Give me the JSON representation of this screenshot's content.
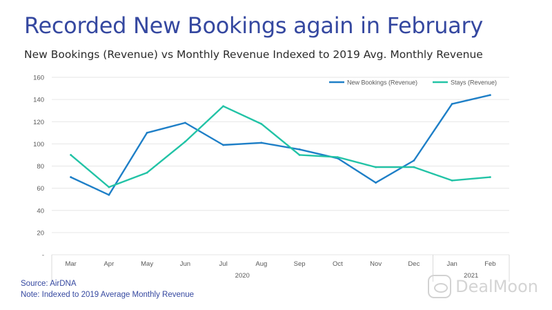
{
  "page": {
    "title": "Recorded New Bookings again in February",
    "subtitle": "New Bookings (Revenue) vs Monthly Revenue Indexed to 2019 Avg. Monthly Revenue"
  },
  "notes": {
    "source": "Source: AirDNA",
    "note": "Note: Indexed to 2019 Average Monthly Revenue"
  },
  "watermark": {
    "text": "DealMoon",
    "icon": "dealmoon-logo-icon"
  },
  "colors": {
    "title": "#3548a0",
    "new_bookings": "#1e7fc7",
    "stays": "#22c3a6",
    "grid": "#e6e6e6"
  },
  "chart_data": {
    "type": "line",
    "title": "",
    "xlabel": "",
    "ylabel": "",
    "categories": [
      "Mar",
      "Apr",
      "May",
      "Jun",
      "Jul",
      "Aug",
      "Sep",
      "Oct",
      "Nov",
      "Dec",
      "Jan",
      "Feb"
    ],
    "year_groups": [
      {
        "label": "2020",
        "categories": [
          "Mar",
          "Apr",
          "May",
          "Jun",
          "Jul",
          "Aug",
          "Sep",
          "Oct",
          "Nov",
          "Dec"
        ]
      },
      {
        "label": "2021",
        "categories": [
          "Jan",
          "Feb"
        ]
      }
    ],
    "series": [
      {
        "name": "New Bookings (Revenue)",
        "color": "#1e7fc7",
        "values": [
          70,
          54,
          110,
          119,
          99,
          101,
          95,
          87,
          65,
          85,
          136,
          144
        ]
      },
      {
        "name": "Stays (Revenue)",
        "color": "#22c3a6",
        "values": [
          90,
          61,
          74,
          102,
          134,
          118,
          90,
          88,
          79,
          79,
          67,
          70
        ]
      }
    ],
    "y_ticks": [
      "-",
      "20",
      "40",
      "60",
      "80",
      "100",
      "120",
      "140",
      "160"
    ],
    "ylim": [
      0,
      160
    ],
    "grid": true,
    "legend_position": "top-right"
  }
}
